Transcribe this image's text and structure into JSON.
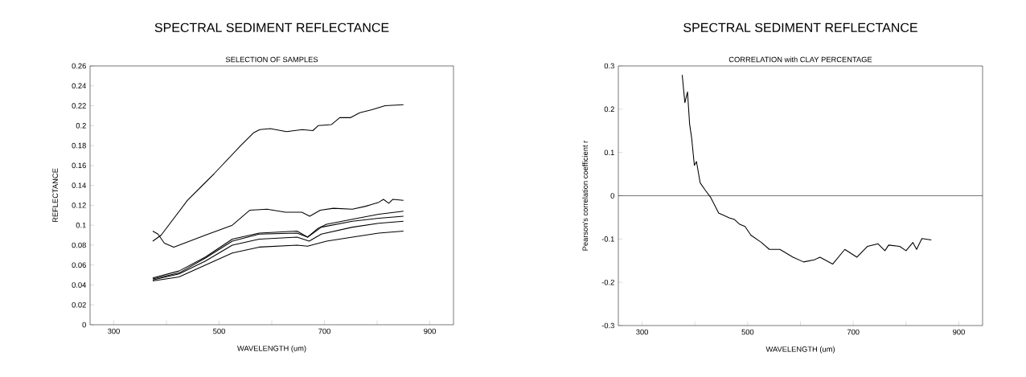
{
  "chart_data": [
    {
      "type": "line",
      "title": "SPECTRAL SEDIMENT REFLECTANCE",
      "subtitle": "SELECTION OF SAMPLES",
      "xlabel": "WAVELENGTH (um)",
      "ylabel": "REFLECTANCE",
      "xlim": [
        255,
        945
      ],
      "ylim": [
        0,
        0.26
      ],
      "xticks": [
        300,
        {
          "value": 400,
          "label": null
        },
        500,
        {
          "value": 600,
          "label": null
        },
        700,
        {
          "value": 800,
          "label": null
        },
        900
      ],
      "yticks": [
        0,
        0.02,
        0.04,
        0.06,
        0.08,
        0.1,
        0.12,
        0.14,
        0.16,
        0.18,
        0.2,
        0.22,
        0.24,
        0.26
      ],
      "series": [
        {
          "color": "#000000",
          "x": [
            374,
            390,
            440,
            491,
            541,
            566,
            577,
            597,
            628,
            658,
            678,
            688,
            713,
            729,
            749,
            767,
            790,
            815,
            850
          ],
          "values": [
            0.084,
            0.09,
            0.125,
            0.152,
            0.18,
            0.193,
            0.196,
            0.197,
            0.194,
            0.196,
            0.195,
            0.2,
            0.201,
            0.208,
            0.208,
            0.213,
            0.216,
            0.22,
            0.221
          ]
        },
        {
          "color": "#000000",
          "x": [
            374,
            384,
            396,
            414,
            434,
            474,
            525,
            558,
            591,
            626,
            657,
            672,
            692,
            717,
            753,
            778,
            803,
            812,
            822,
            830,
            850
          ],
          "values": [
            0.094,
            0.091,
            0.082,
            0.078,
            0.082,
            0.09,
            0.1,
            0.115,
            0.116,
            0.113,
            0.113,
            0.109,
            0.115,
            0.117,
            0.116,
            0.119,
            0.123,
            0.126,
            0.122,
            0.126,
            0.125
          ]
        },
        {
          "color": "#000000",
          "x": [
            374,
            424,
            474,
            525,
            576,
            648,
            668,
            688,
            704,
            753,
            803,
            850
          ],
          "values": [
            0.047,
            0.054,
            0.068,
            0.086,
            0.092,
            0.094,
            0.088,
            0.097,
            0.101,
            0.106,
            0.111,
            0.114
          ]
        },
        {
          "color": "#000000",
          "x": [
            374,
            424,
            474,
            525,
            576,
            648,
            668,
            694,
            753,
            803,
            850
          ],
          "values": [
            0.046,
            0.052,
            0.067,
            0.084,
            0.091,
            0.092,
            0.088,
            0.098,
            0.104,
            0.107,
            0.109
          ]
        },
        {
          "color": "#000000",
          "x": [
            374,
            424,
            474,
            525,
            576,
            648,
            671,
            694,
            753,
            803,
            850
          ],
          "values": [
            0.045,
            0.051,
            0.064,
            0.08,
            0.086,
            0.088,
            0.084,
            0.091,
            0.098,
            0.102,
            0.104
          ]
        },
        {
          "color": "#000000",
          "x": [
            374,
            424,
            474,
            525,
            576,
            648,
            668,
            704,
            753,
            803,
            850
          ],
          "values": [
            0.044,
            0.048,
            0.06,
            0.072,
            0.078,
            0.08,
            0.079,
            0.084,
            0.088,
            0.092,
            0.094
          ]
        }
      ]
    },
    {
      "type": "line",
      "title": "SPECTRAL SEDIMENT REFLECTANCE",
      "subtitle": "CORRELATION with CLAY PERCENTAGE",
      "xlabel": "WAVELENGTH (um)",
      "ylabel": "Pearson's correlation coefficient r",
      "xlim": [
        255,
        945
      ],
      "ylim": [
        -0.3,
        0.3
      ],
      "xticks": [
        300,
        {
          "value": 400,
          "label": null
        },
        500,
        {
          "value": 600,
          "label": null
        },
        700,
        {
          "value": 800,
          "label": null
        },
        900
      ],
      "yticks": [
        -0.3,
        -0.2,
        -0.1,
        0,
        0.1,
        0.2,
        0.3
      ],
      "ref_lines": [
        {
          "axis": "y",
          "value": 0,
          "color": "#000000"
        }
      ],
      "series": [
        {
          "color": "#000000",
          "x": [
            376,
            381,
            386,
            390,
            394,
            399,
            403,
            410,
            419,
            430,
            445,
            465,
            475,
            485,
            495,
            506,
            526,
            541,
            561,
            586,
            606,
            626,
            637,
            661,
            684,
            707,
            727,
            747,
            760,
            767,
            788,
            800,
            813,
            820,
            830,
            848
          ],
          "values": [
            0.279,
            0.215,
            0.24,
            0.166,
            0.132,
            0.07,
            0.079,
            0.03,
            0.014,
            -0.004,
            -0.04,
            -0.051,
            -0.055,
            -0.066,
            -0.071,
            -0.091,
            -0.108,
            -0.124,
            -0.124,
            -0.142,
            -0.153,
            -0.148,
            -0.142,
            -0.158,
            -0.124,
            -0.142,
            -0.117,
            -0.111,
            -0.127,
            -0.114,
            -0.117,
            -0.127,
            -0.108,
            -0.124,
            -0.099,
            -0.102
          ]
        }
      ]
    }
  ]
}
